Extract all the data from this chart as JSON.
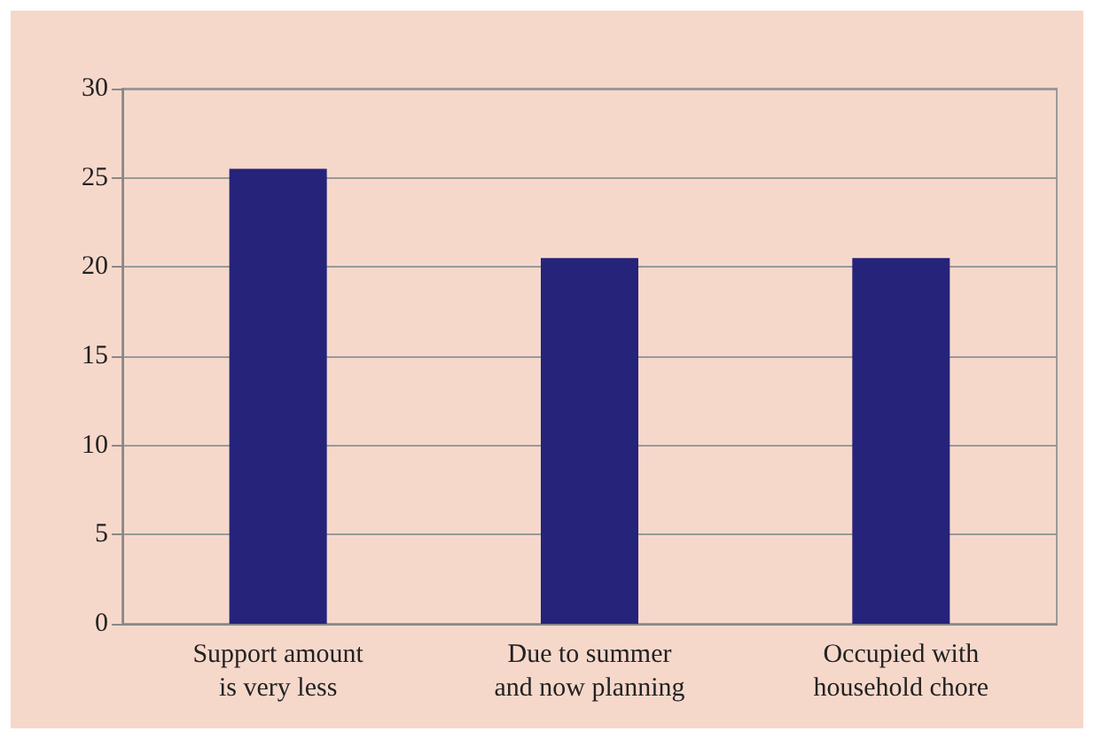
{
  "chart_data": {
    "type": "bar",
    "categories": [
      "Support amount\nis very less",
      "Due to summer\nand now planning",
      "Occupied with\nhousehold chore"
    ],
    "values": [
      25.5,
      20.5,
      20.5
    ],
    "color": "#25237a",
    "ylim": [
      0,
      30
    ],
    "yticks": [
      0,
      5,
      10,
      15,
      20,
      25,
      30
    ],
    "grid": "y"
  }
}
